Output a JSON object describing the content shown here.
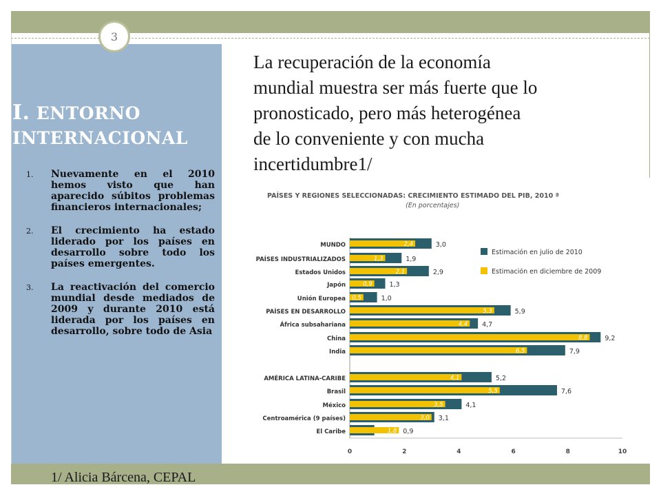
{
  "slide": {
    "page_number": "3",
    "section_number": "I.",
    "section_title_line1": "ENTORNO",
    "section_title_line2": "INTERNACIONAL",
    "headline_lines": [
      "La recuperación de la economía",
      "mundial muestra ser más fuerte que lo",
      "pronosticado, pero más heterogénea",
      "de lo conveniente y con mucha",
      "incertidumbre1/"
    ],
    "bullets": [
      {
        "num": "1.",
        "text": "Nuevamente en el 2010 hemos visto que han aparecido súbitos problemas financieros internacionales;"
      },
      {
        "num": "2.",
        "text": "El crecimiento ha estado liderado por los países en desarrollo sobre todo los países emergentes."
      },
      {
        "num": "3.",
        "text": "La reactivación del comercio mundial desde mediados de 2009 y durante 2010 está liderada por los países en desarrollo, sobre todo de Asia"
      }
    ],
    "footnote": "1/ Alicia Bárcena, CEPAL"
  },
  "colors": {
    "band": "#a8b08a",
    "sidebar": "#9cb6d0",
    "series_july": "#2b5f6b",
    "series_dec": "#f2c100"
  },
  "chart_data": {
    "type": "bar",
    "orientation": "horizontal",
    "title": "PAÍSES Y REGIONES SELECCIONADAS: CRECIMIENTO ESTIMADO DEL PIB, 2010 ª",
    "subtitle": "(En porcentajes)",
    "categories": [
      "MUNDO",
      "PAÍSES INDUSTRIALIZADOS",
      "Estados Unidos",
      "Japón",
      "Unión Europea",
      "PAÍSES EN DESARROLLO",
      "África subsahariana",
      "China",
      "India",
      "AMÉRICA LATINA-CARIBE",
      "Brasil",
      "México",
      "Centroamérica (9 países)",
      "El Caribe"
    ],
    "series": [
      {
        "name": "Estimación en julio de 2010",
        "values": [
          3.0,
          1.9,
          2.9,
          1.3,
          1.0,
          5.9,
          4.7,
          9.2,
          7.9,
          5.2,
          7.6,
          4.1,
          3.1,
          0.9
        ],
        "labels": [
          "3,0",
          "1,9",
          "2,9",
          "1,3",
          "1,0",
          "5,9",
          "4,7",
          "9,2",
          "7,9",
          "5,2",
          "7,6",
          "4,1",
          "3,1",
          "0,9"
        ]
      },
      {
        "name": "Estimación en diciembre de 2009",
        "values": [
          2.4,
          1.3,
          2.1,
          0.9,
          0.5,
          5.3,
          4.4,
          8.8,
          6.5,
          4.1,
          5.5,
          3.5,
          3.0,
          1.8
        ],
        "labels": [
          "2,4",
          "1,3",
          "2,1",
          "0,9",
          "0,5",
          "5,3",
          "4,4",
          "8,8",
          "6,5",
          "4,1",
          "5,5",
          "3,5",
          "3,0",
          "1,8"
        ]
      }
    ],
    "xlim": [
      0,
      10
    ],
    "xticks": [
      "0",
      "2",
      "4",
      "6",
      "8",
      "10"
    ],
    "legend_position": "top-right",
    "grid": false
  }
}
